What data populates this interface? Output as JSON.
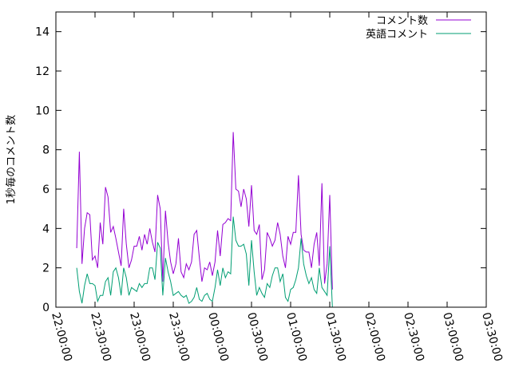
{
  "chart_data": {
    "type": "line",
    "ylabel": "1秒毎のコメント数",
    "xlabel": "",
    "ylim": [
      0,
      15
    ],
    "y_ticks": [
      0,
      2,
      4,
      6,
      8,
      10,
      12,
      14
    ],
    "y_tick_labels": [
      "0",
      "2",
      "4",
      "6",
      "8",
      "10",
      "12",
      "14"
    ],
    "xlim_minutes": [
      0,
      330
    ],
    "x_ticks": [
      0,
      30,
      60,
      90,
      120,
      150,
      180,
      210,
      240,
      270,
      300,
      330
    ],
    "x_tick_labels": [
      "22:00:00",
      "22:30:00",
      "23:00:00",
      "23:30:00",
      "00:00:00",
      "00:30:00",
      "01:00:00",
      "01:30:00",
      "02:00:00",
      "02:30:00",
      "03:00:00",
      "03:30:00"
    ],
    "x_axis_start": "22:00:00",
    "x_step_minutes": 2,
    "x_first_minutes": 16,
    "legend_position": "top-right",
    "grid": false,
    "series": [
      {
        "name": "コメント数",
        "color": "#9400d3",
        "values": [
          3.0,
          7.9,
          2.2,
          4.0,
          4.8,
          4.7,
          2.4,
          2.6,
          2.0,
          4.3,
          3.2,
          6.1,
          5.6,
          3.8,
          4.1,
          3.5,
          2.8,
          2.1,
          5.0,
          3.2,
          2.0,
          2.4,
          3.1,
          3.1,
          3.6,
          2.9,
          3.7,
          3.2,
          4.0,
          3.3,
          2.8,
          5.7,
          5.0,
          1.3,
          4.9,
          3.3,
          2.3,
          1.7,
          2.2,
          3.5,
          1.8,
          1.5,
          2.2,
          1.9,
          2.3,
          3.7,
          3.9,
          2.5,
          1.3,
          2.0,
          1.9,
          2.3,
          1.6,
          2.3,
          3.9,
          2.6,
          4.2,
          4.3,
          4.5,
          4.4,
          8.9,
          6.0,
          5.9,
          5.1,
          6.0,
          5.5,
          4.1,
          6.2,
          3.9,
          3.7,
          4.2,
          1.4,
          1.9,
          3.8,
          3.5,
          3.1,
          3.4,
          4.3,
          3.7,
          2.6,
          2.0,
          3.6,
          3.2,
          3.8,
          3.8,
          6.7,
          3.7,
          2.9,
          2.8,
          2.8,
          2.0,
          3.2,
          3.8,
          2.1,
          6.3,
          1.2,
          2.2,
          5.7,
          0.9
        ]
      },
      {
        "name": "英語コメント",
        "color": "#009e73",
        "values": [
          2.0,
          0.8,
          0.2,
          1.1,
          1.7,
          1.2,
          1.2,
          1.1,
          0.3,
          0.6,
          0.6,
          1.3,
          1.5,
          0.6,
          1.8,
          2.0,
          1.5,
          0.6,
          2.0,
          1.5,
          0.6,
          1.0,
          0.9,
          0.8,
          1.2,
          1.0,
          1.2,
          1.2,
          2.0,
          2.0,
          1.4,
          3.3,
          3.0,
          0.6,
          2.5,
          1.8,
          1.3,
          0.6,
          0.7,
          0.8,
          0.6,
          0.5,
          0.6,
          0.2,
          0.3,
          0.5,
          1.0,
          0.4,
          0.3,
          0.6,
          0.7,
          0.4,
          0.3,
          1.0,
          1.9,
          1.1,
          2.0,
          1.5,
          1.8,
          1.7,
          4.6,
          3.4,
          3.1,
          3.1,
          3.2,
          2.7,
          1.1,
          3.4,
          1.8,
          0.6,
          1.0,
          0.7,
          0.5,
          1.2,
          1.0,
          1.6,
          2.0,
          2.0,
          1.3,
          1.7,
          0.5,
          0.3,
          0.9,
          1.0,
          1.4,
          2.0,
          3.5,
          2.2,
          1.6,
          1.2,
          1.5,
          0.9,
          0.7,
          2.0,
          1.0,
          0.8,
          0.6,
          3.1,
          0.0
        ]
      }
    ]
  }
}
